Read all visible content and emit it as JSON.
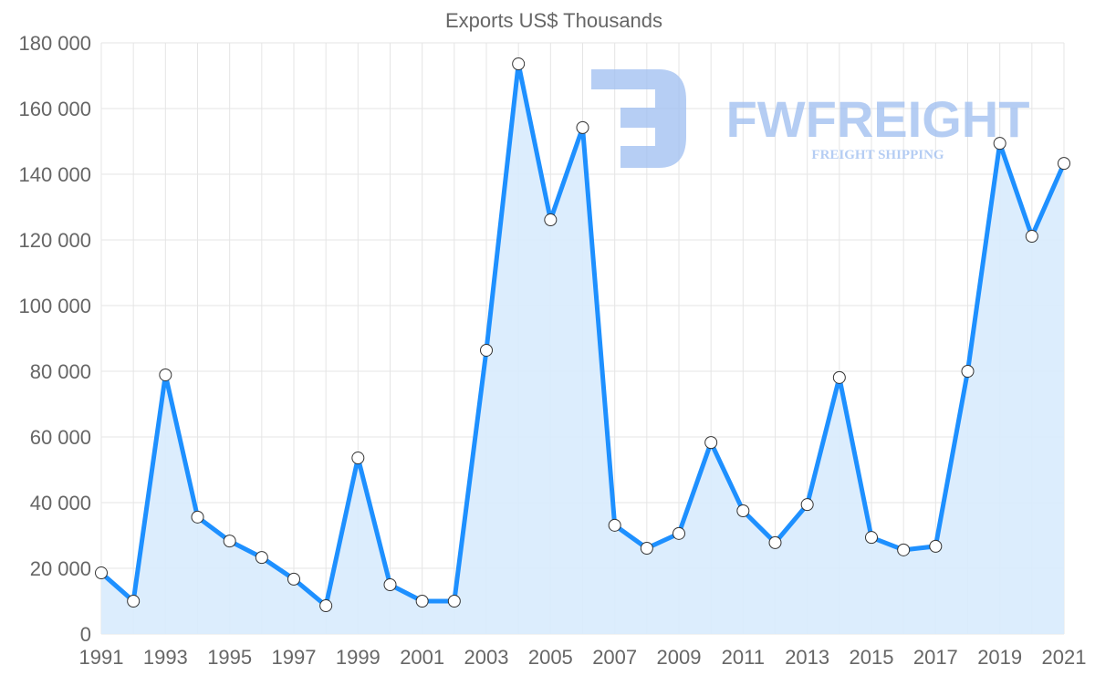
{
  "chart_data": {
    "type": "line",
    "title": "Exports US$ Thousands",
    "xlabel": "",
    "ylabel": "",
    "x": [
      1991,
      1992,
      1993,
      1994,
      1995,
      1996,
      1997,
      1998,
      1999,
      2000,
      2001,
      2002,
      2003,
      2004,
      2005,
      2006,
      2007,
      2008,
      2009,
      2010,
      2011,
      2012,
      2013,
      2014,
      2015,
      2016,
      2017,
      2018,
      2019,
      2020,
      2021
    ],
    "series": [
      {
        "name": "Exports US$ Thousands",
        "values": [
          18600,
          10000,
          78900,
          35600,
          28300,
          23300,
          16700,
          8600,
          53600,
          15000,
          10000,
          10000,
          86400,
          173600,
          126100,
          154200,
          33100,
          26100,
          30600,
          58300,
          37500,
          27800,
          39400,
          78100,
          29400,
          25600,
          26700,
          80000,
          149400,
          121100,
          143300
        ]
      }
    ],
    "ylim": [
      0,
      180000
    ],
    "yticks": [
      "0",
      "20 000",
      "40 000",
      "60 000",
      "80 000",
      "100 000",
      "120 000",
      "140 000",
      "160 000",
      "180 000"
    ],
    "xticks": [
      "1991",
      "1993",
      "1995",
      "1997",
      "1999",
      "2001",
      "2003",
      "2005",
      "2007",
      "2009",
      "2011",
      "2013",
      "2015",
      "2017",
      "2019",
      "2021"
    ],
    "grid": true,
    "fill": true,
    "colors": {
      "line": "#1e90ff",
      "fill": "#d8ebfd",
      "grid": "#e5e5e5",
      "watermark": "#9dbdf0"
    }
  },
  "watermark": {
    "brand": "FWFREIGHT",
    "tagline": "FREIGHT SHIPPING"
  }
}
